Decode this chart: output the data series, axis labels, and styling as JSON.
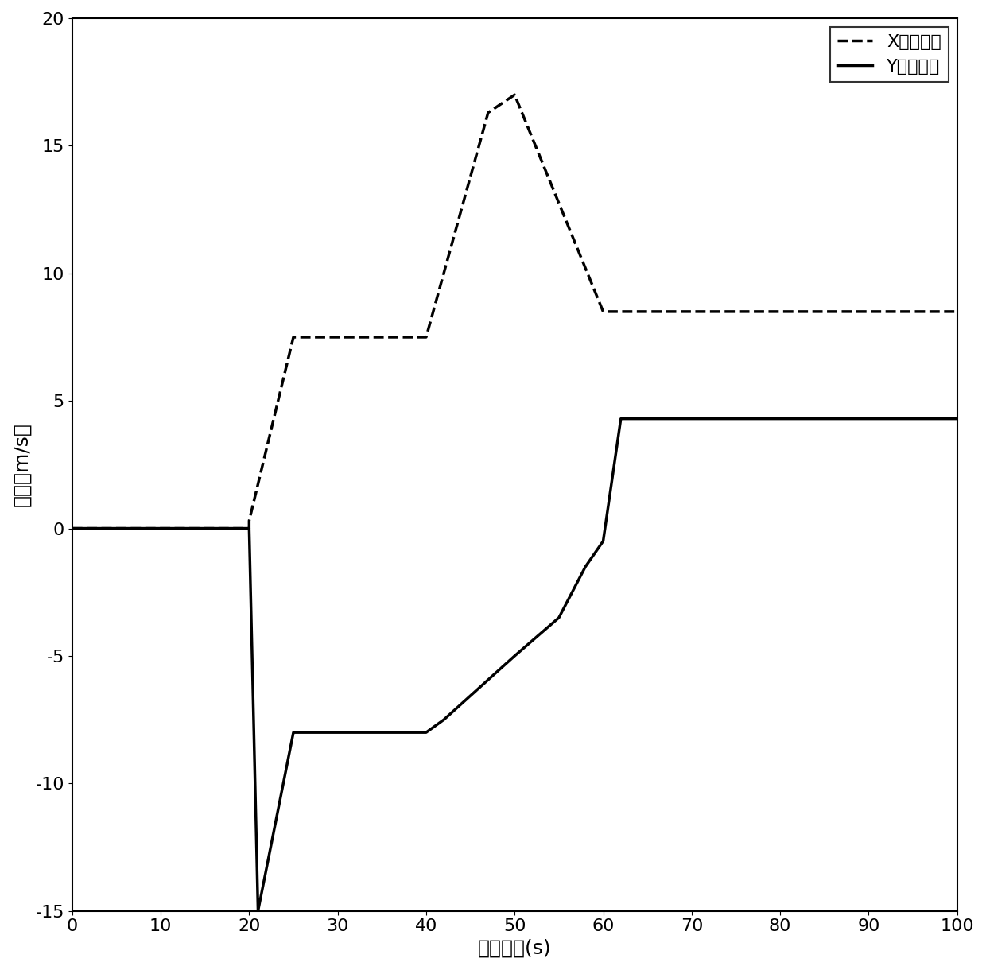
{
  "x_speed_x": [
    0,
    20,
    20,
    25,
    35,
    40,
    47,
    50,
    60,
    62,
    100
  ],
  "x_speed_y": [
    0,
    0,
    0.3,
    7.5,
    7.5,
    7.5,
    16.3,
    17.0,
    8.5,
    8.5,
    8.5
  ],
  "y_speed_x": [
    0,
    20,
    21,
    25,
    40,
    42,
    50,
    55,
    58,
    60,
    62,
    100
  ],
  "y_speed_y": [
    0,
    0,
    -15.0,
    -8.0,
    -8.0,
    -7.5,
    -5.0,
    -3.5,
    -1.5,
    -0.5,
    4.3,
    4.3
  ],
  "xlim": [
    0,
    100
  ],
  "ylim": [
    -15,
    20
  ],
  "xticks": [
    0,
    10,
    20,
    30,
    40,
    50,
    60,
    70,
    80,
    90,
    100
  ],
  "yticks": [
    -15,
    -10,
    -5,
    0,
    5,
    10,
    15,
    20
  ],
  "xlabel": "采样时间(s)",
  "ylabel": "速度（m/s）",
  "legend_x": "X方向速度",
  "legend_y": "Y方向速度",
  "line_color": "#000000",
  "background_color": "#ffffff",
  "linewidth": 2.5,
  "dashed_linewidth": 2.5
}
